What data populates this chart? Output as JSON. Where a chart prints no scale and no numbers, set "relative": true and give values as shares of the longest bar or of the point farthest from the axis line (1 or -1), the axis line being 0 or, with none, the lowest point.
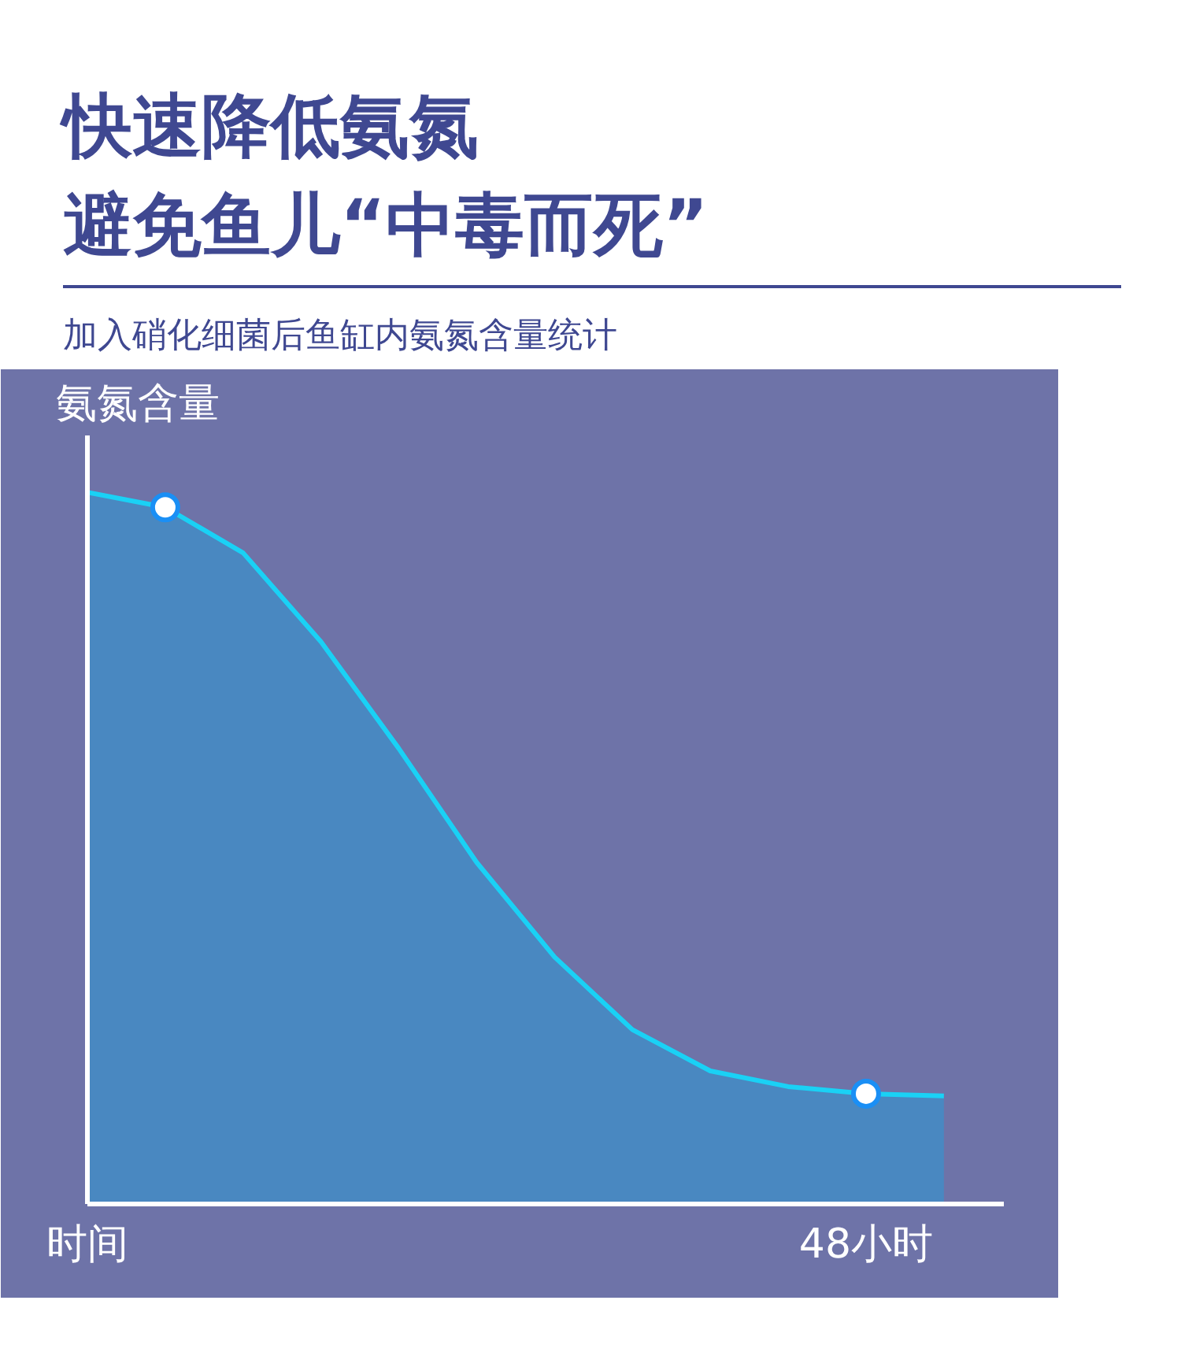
{
  "chart_data": {
    "type": "area",
    "title": "快速降低氨氮",
    "subtitle": "避免鱼儿“中毒而死”",
    "annotations": [
      "加入硝化细菌后鱼缸内氨氮含量统计"
    ],
    "ylabel": "氨氮含量",
    "relative": true,
    "categories": [
      "时间",
      null,
      null,
      null,
      null,
      null,
      null,
      null,
      null,
      null,
      "48小时",
      null
    ],
    "series": [
      {
        "color": "#1ad1f5",
        "values": [
          1,
          0.979,
          0.915,
          0.79,
          0.64,
          0.48,
          0.347,
          0.245,
          0.187,
          0.165,
          0.155,
          0.152
        ]
      },
      {
        "type": "scatter",
        "marker": "circle",
        "color": "#1a8ff5",
        "values": [
          null,
          0.979,
          null,
          null,
          null,
          null,
          null,
          null,
          null,
          null,
          0.155,
          null
        ]
      }
    ]
  }
}
